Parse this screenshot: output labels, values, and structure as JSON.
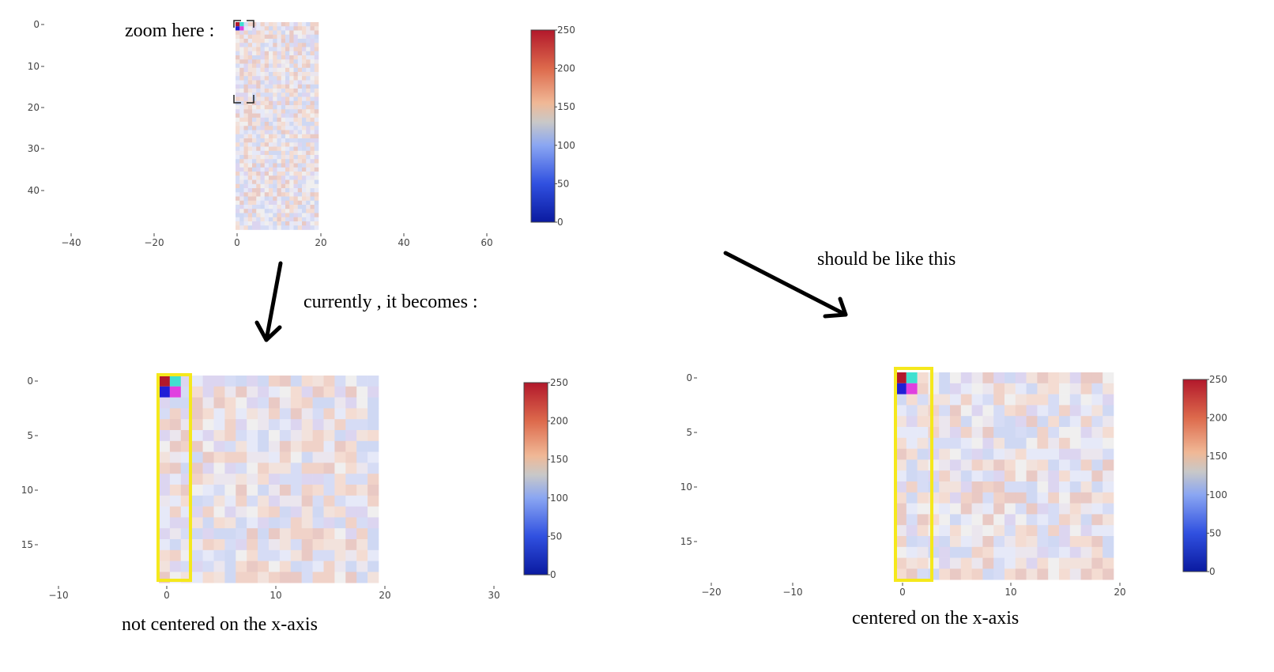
{
  "annotations": {
    "zoom_here": "zoom here :",
    "currently": "currently , it becomes :",
    "should_be": "should be like this",
    "not_centered": "not centered on the x-axis",
    "centered": "centered on the x-axis"
  },
  "chart_data": [
    {
      "type": "heatmap",
      "panel": "original",
      "x_range": [
        -45,
        65
      ],
      "y_range": [
        0,
        49
      ],
      "x_ticks": [
        "−40",
        "−20",
        "0",
        "20",
        "40",
        "60"
      ],
      "y_ticks": [
        "0",
        "10",
        "20",
        "30",
        "40"
      ],
      "grid_cols": 20,
      "grid_rows": 50,
      "highlight_cells": [
        {
          "col": 0,
          "row": 0,
          "color": "#b2182b"
        },
        {
          "col": 1,
          "row": 0,
          "color": "#40e0d0"
        },
        {
          "col": 0,
          "row": 1,
          "color": "#1f1fd6"
        },
        {
          "col": 1,
          "row": 1,
          "color": "#e040e0"
        }
      ],
      "zoom_region": {
        "x": [
          0,
          4
        ],
        "y": [
          0,
          18
        ]
      },
      "colorbar": {
        "min": 0,
        "max": 250,
        "ticks": [
          "250",
          "200",
          "150",
          "100",
          "50",
          "0"
        ]
      }
    },
    {
      "type": "heatmap",
      "panel": "current",
      "x_range": [
        -10,
        30
      ],
      "y_range": [
        0,
        19
      ],
      "x_ticks": [
        "−10",
        "0",
        "10",
        "20",
        "30"
      ],
      "y_ticks": [
        "0",
        "5",
        "10",
        "15"
      ],
      "grid_cols": 20,
      "grid_rows": 19,
      "colorbar": {
        "min": 0,
        "max": 250,
        "ticks": [
          "250",
          "200",
          "150",
          "100",
          "50",
          "0"
        ]
      }
    },
    {
      "type": "heatmap",
      "panel": "expected",
      "x_range": [
        -20,
        20
      ],
      "y_range": [
        0,
        19
      ],
      "x_ticks": [
        "−20",
        "−10",
        "0",
        "10",
        "20"
      ],
      "y_ticks": [
        "0",
        "5",
        "10",
        "15"
      ],
      "grid_cols": 20,
      "grid_rows": 19,
      "colorbar": {
        "min": 0,
        "max": 250,
        "ticks": [
          "250",
          "200",
          "150",
          "100",
          "50",
          "0"
        ]
      }
    }
  ],
  "colors": {
    "highlight_box": "#f5e81c",
    "colorscale": [
      "#0a1aa0",
      "#3050e0",
      "#7a99f0",
      "#c8c8c8",
      "#f0a27a",
      "#d65a42",
      "#b2182b"
    ]
  }
}
